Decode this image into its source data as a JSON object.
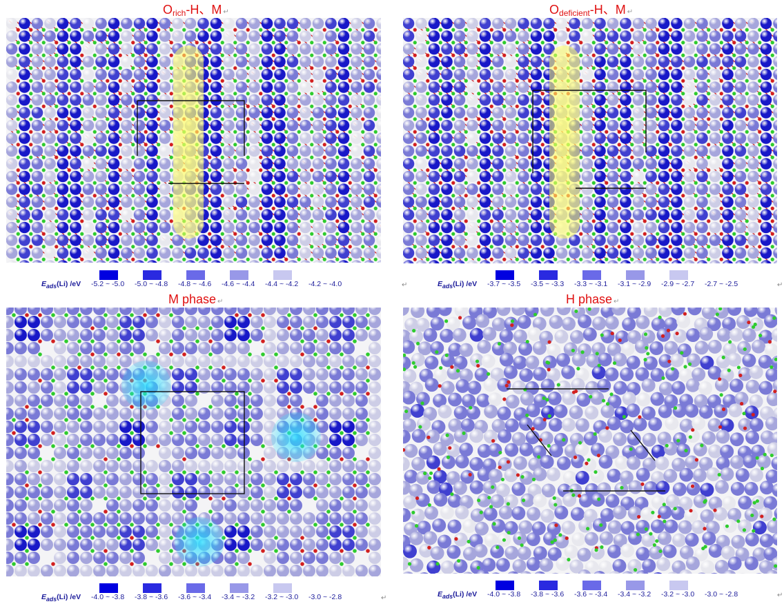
{
  "panels": [
    {
      "id": "orich",
      "title_main": "O",
      "title_sub": "rich",
      "title_rest": "-H、M",
      "legend_label_prefix": "E",
      "legend_label_sub": "ads",
      "legend_label_rest": "(Li) /eV",
      "ranges": [
        "-5.2 ~ -5.0",
        "-5.0 ~ -4.8",
        "-4.8 ~ -4.6",
        "-4.6 ~ -4.4",
        "-4.4 ~ -4.2",
        "-4.2 ~ -4.0"
      ],
      "colors": [
        "#0000e0",
        "#2a2ae0",
        "#6a6ae8",
        "#9898e8",
        "#c8c8f0",
        "#ffffff"
      ]
    },
    {
      "id": "odef",
      "title_main": "O",
      "title_sub": "deficient",
      "title_rest": "-H、M",
      "legend_label_prefix": "E",
      "legend_label_sub": "ads",
      "legend_label_rest": "(Li) /eV",
      "ranges": [
        "-3.7 ~ -3.5",
        "-3.5 ~ -3.3",
        "-3.3 ~ -3.1",
        "-3.1 ~ -2.9",
        "-2.9 ~ -2.7",
        "-2.7 ~ -2.5"
      ],
      "colors": [
        "#0000e0",
        "#2a2ae0",
        "#6a6ae8",
        "#9898e8",
        "#c8c8f0",
        "#ffffff"
      ]
    },
    {
      "id": "mphase",
      "title_main": "M phase",
      "title_sub": "",
      "title_rest": "",
      "legend_label_prefix": "E",
      "legend_label_sub": "ads",
      "legend_label_rest": "(Li) /eV",
      "ranges": [
        "-4.0 ~ -3.8",
        "-3.8 ~ -3.6",
        "-3.6 ~ -3.4",
        "-3.4 ~ -3.2",
        "-3.2 ~ -3.0",
        "-3.0 ~ -2.8"
      ],
      "colors": [
        "#0000e0",
        "#2a2ae0",
        "#6a6ae8",
        "#9898e8",
        "#c8c8f0",
        "#ffffff"
      ]
    },
    {
      "id": "hphase",
      "title_main": "H phase",
      "title_sub": "",
      "title_rest": "",
      "legend_label_prefix": "E",
      "legend_label_sub": "ads",
      "legend_label_rest": "(Li) /eV",
      "ranges": [
        "-4.0 ~ -3.8",
        "-3.8 ~ -3.6",
        "-3.6 ~ -3.4",
        "-3.4 ~ -3.2",
        "-3.2 ~ -3.0",
        "-3.0 ~ -2.8"
      ],
      "colors": [
        "#0000e0",
        "#2a2ae0",
        "#6a6ae8",
        "#9898e8",
        "#c8c8f0",
        "#ffffff"
      ]
    }
  ],
  "atom_colors": {
    "level1": "#1818c8",
    "level2": "#4040d0",
    "level3": "#7a7ad6",
    "level4": "#a6a6dc",
    "level5": "#cdcde6",
    "level6": "#e8e8ee",
    "small_green": "#2ecc2e",
    "small_red": "#d22020",
    "highlight_yellow": "#ffff66",
    "highlight_cyan": "#22ddff"
  },
  "return_mark": "↵"
}
